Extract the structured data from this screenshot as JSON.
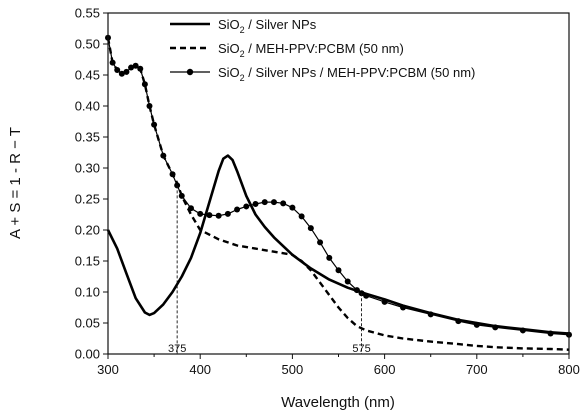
{
  "chart_data": {
    "type": "line",
    "xlabel": "Wavelength (nm)",
    "ylabel": "A + S = 1 - R − T",
    "xlim": [
      300,
      800
    ],
    "ylim": [
      0,
      0.55
    ],
    "x_ticks": [
      "300",
      "400",
      "500",
      "600",
      "700",
      "800"
    ],
    "y_ticks": [
      "0.00",
      "0.05",
      "0.10",
      "0.15",
      "0.20",
      "0.25",
      "0.30",
      "0.35",
      "0.40",
      "0.45",
      "0.50",
      "0.55"
    ],
    "grid": false,
    "legend_position": "top-right",
    "reference_lines": [
      {
        "x": 375,
        "label": "375"
      },
      {
        "x": 575,
        "label": "575"
      }
    ],
    "series": [
      {
        "name_main": "SiO",
        "name_sub": "2",
        "name_rest": " / Silver NPs",
        "style": "solid",
        "x": [
          300,
          310,
          320,
          330,
          340,
          345,
          350,
          360,
          370,
          380,
          390,
          400,
          410,
          420,
          425,
          430,
          435,
          440,
          450,
          460,
          470,
          480,
          500,
          520,
          540,
          560,
          580,
          600,
          620,
          650,
          680,
          700,
          720,
          750,
          780,
          800
        ],
        "y": [
          0.2,
          0.17,
          0.13,
          0.09,
          0.067,
          0.063,
          0.066,
          0.08,
          0.1,
          0.125,
          0.155,
          0.195,
          0.245,
          0.295,
          0.315,
          0.32,
          0.313,
          0.295,
          0.255,
          0.225,
          0.205,
          0.188,
          0.16,
          0.138,
          0.12,
          0.107,
          0.097,
          0.088,
          0.078,
          0.066,
          0.055,
          0.05,
          0.045,
          0.04,
          0.035,
          0.033
        ]
      },
      {
        "name_main": "SiO",
        "name_sub": "2",
        "name_rest": " / MEH-PPV:PCBM (50 nm)",
        "style": "dashed",
        "x": [
          300,
          305,
          310,
          315,
          320,
          325,
          330,
          335,
          340,
          345,
          350,
          360,
          370,
          375,
          380,
          390,
          400,
          420,
          440,
          460,
          480,
          500,
          510,
          520,
          530,
          540,
          550,
          560,
          570,
          580,
          600,
          620,
          650,
          680,
          700,
          720,
          750,
          780,
          800
        ],
        "y": [
          0.51,
          0.47,
          0.458,
          0.452,
          0.455,
          0.462,
          0.465,
          0.46,
          0.435,
          0.4,
          0.37,
          0.32,
          0.29,
          0.276,
          0.255,
          0.225,
          0.2,
          0.185,
          0.175,
          0.17,
          0.165,
          0.16,
          0.15,
          0.135,
          0.115,
          0.095,
          0.075,
          0.058,
          0.045,
          0.038,
          0.03,
          0.025,
          0.02,
          0.016,
          0.013,
          0.011,
          0.009,
          0.008,
          0.007
        ]
      },
      {
        "name_main": "SiO",
        "name_sub": "2",
        "name_rest": " / Silver NPs / MEH-PPV:PCBM (50 nm)",
        "style": "dotted-markers",
        "x": [
          300,
          305,
          310,
          315,
          320,
          325,
          330,
          335,
          340,
          345,
          350,
          360,
          370,
          375,
          380,
          390,
          400,
          410,
          420,
          430,
          440,
          450,
          460,
          470,
          480,
          490,
          500,
          510,
          520,
          530,
          540,
          550,
          560,
          570,
          575,
          580,
          600,
          620,
          650,
          680,
          700,
          720,
          750,
          780,
          800
        ],
        "y": [
          0.51,
          0.47,
          0.458,
          0.452,
          0.455,
          0.462,
          0.465,
          0.46,
          0.435,
          0.4,
          0.37,
          0.32,
          0.29,
          0.272,
          0.255,
          0.235,
          0.226,
          0.224,
          0.223,
          0.226,
          0.233,
          0.238,
          0.242,
          0.245,
          0.245,
          0.243,
          0.236,
          0.222,
          0.203,
          0.18,
          0.155,
          0.135,
          0.117,
          0.103,
          0.098,
          0.094,
          0.084,
          0.075,
          0.064,
          0.053,
          0.047,
          0.043,
          0.038,
          0.033,
          0.031
        ]
      }
    ]
  }
}
